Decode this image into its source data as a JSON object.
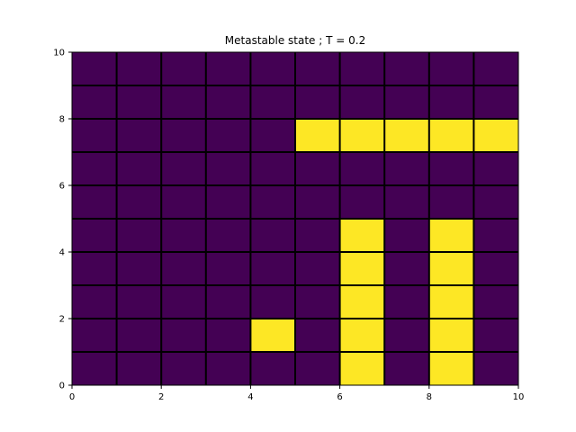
{
  "chart_data": {
    "type": "heatmap",
    "title": "Metastable state ; T = 0.2",
    "xlabel": "",
    "ylabel": "",
    "xlim": [
      0,
      10
    ],
    "ylim": [
      0,
      10
    ],
    "xticks": [
      0,
      2,
      4,
      6,
      8,
      10
    ],
    "yticks": [
      0,
      2,
      4,
      6,
      8,
      10
    ],
    "grid_lines": true,
    "colors": {
      "low": "#440154",
      "high": "#fde725",
      "grid": "#000000"
    },
    "rows_from_bottom": [
      [
        0,
        0,
        0,
        0,
        0,
        0,
        1,
        0,
        1,
        0
      ],
      [
        0,
        0,
        0,
        0,
        1,
        0,
        1,
        0,
        1,
        0
      ],
      [
        0,
        0,
        0,
        0,
        0,
        0,
        1,
        0,
        1,
        0
      ],
      [
        0,
        0,
        0,
        0,
        0,
        0,
        1,
        0,
        1,
        0
      ],
      [
        0,
        0,
        0,
        0,
        0,
        0,
        1,
        0,
        1,
        0
      ],
      [
        0,
        0,
        0,
        0,
        0,
        0,
        0,
        0,
        0,
        0
      ],
      [
        0,
        0,
        0,
        0,
        0,
        0,
        0,
        0,
        0,
        0
      ],
      [
        0,
        0,
        0,
        0,
        0,
        1,
        1,
        1,
        1,
        1
      ],
      [
        0,
        0,
        0,
        0,
        0,
        0,
        0,
        0,
        0,
        0
      ],
      [
        0,
        0,
        0,
        0,
        0,
        0,
        0,
        0,
        0,
        0
      ]
    ]
  }
}
